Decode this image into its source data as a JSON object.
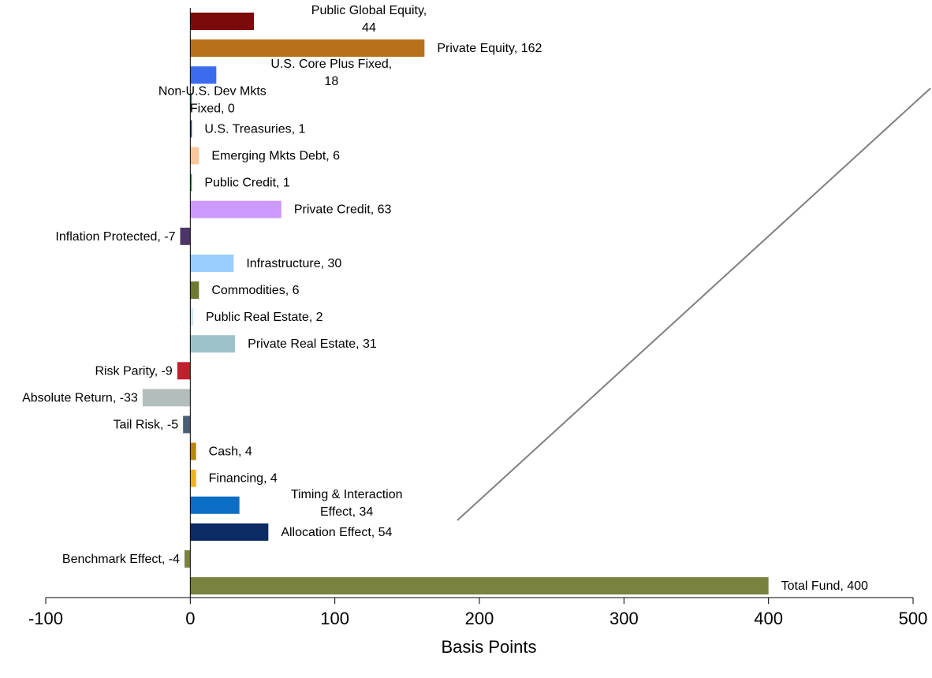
{
  "chart_data": {
    "type": "bar",
    "orientation": "horizontal",
    "xlabel": "Basis Points",
    "xlim": [
      -100,
      500
    ],
    "xticks": [
      -100,
      0,
      100,
      200,
      300,
      400,
      500
    ],
    "grid": false,
    "bars": [
      {
        "label": "Public Global Equity,\n44",
        "value": 44,
        "color": "#7b0a0a"
      },
      {
        "label": "Private Equity, 162",
        "value": 162,
        "color": "#b8711a"
      },
      {
        "label": "U.S. Core Plus Fixed,\n18",
        "value": 18,
        "color": "#3b6cf0"
      },
      {
        "label": "Non-U.S. Dev Mkts\nFixed, 0",
        "value": 0,
        "color": "#2f7f7a"
      },
      {
        "label": "U.S. Treasuries, 1",
        "value": 1,
        "color": "#1f4f7f"
      },
      {
        "label": "Emerging Mkts Debt, 6",
        "value": 6,
        "color": "#f8c79b"
      },
      {
        "label": "Public Credit, 1",
        "value": 1,
        "color": "#2fa05f"
      },
      {
        "label": "Private Credit, 63",
        "value": 63,
        "color": "#cc99ff"
      },
      {
        "label": "Inflation Protected, -7",
        "value": -7,
        "color": "#4d3568"
      },
      {
        "label": "Infrastructure, 30",
        "value": 30,
        "color": "#99ccff"
      },
      {
        "label": "Commodities, 6",
        "value": 6,
        "color": "#6d7a2f"
      },
      {
        "label": "Public Real Estate, 2",
        "value": 2,
        "color": "#cfe6f5"
      },
      {
        "label": "Private Real Estate, 31",
        "value": 31,
        "color": "#9dc3c8"
      },
      {
        "label": "Risk Parity, -9",
        "value": -9,
        "color": "#c0202e"
      },
      {
        "label": "Absolute Return, -33",
        "value": -33,
        "color": "#b3bdbd"
      },
      {
        "label": "Tail Risk, -5",
        "value": -5,
        "color": "#4a5e75"
      },
      {
        "label": "Cash,  4",
        "value": 4,
        "color": "#b8860b"
      },
      {
        "label": "Financing, 4",
        "value": 4,
        "color": "#f0b020"
      },
      {
        "label": "Timing & Interaction\nEffect, 34",
        "value": 34,
        "color": "#0a6fc4"
      },
      {
        "label": "Allocation Effect, 54",
        "value": 54,
        "color": "#0c2a66"
      },
      {
        "label": "Benchmark Effect, -4",
        "value": -4,
        "color": "#7a8240"
      },
      {
        "label": "Total Fund, 400",
        "value": 400,
        "color": "#7a8240"
      }
    ]
  }
}
